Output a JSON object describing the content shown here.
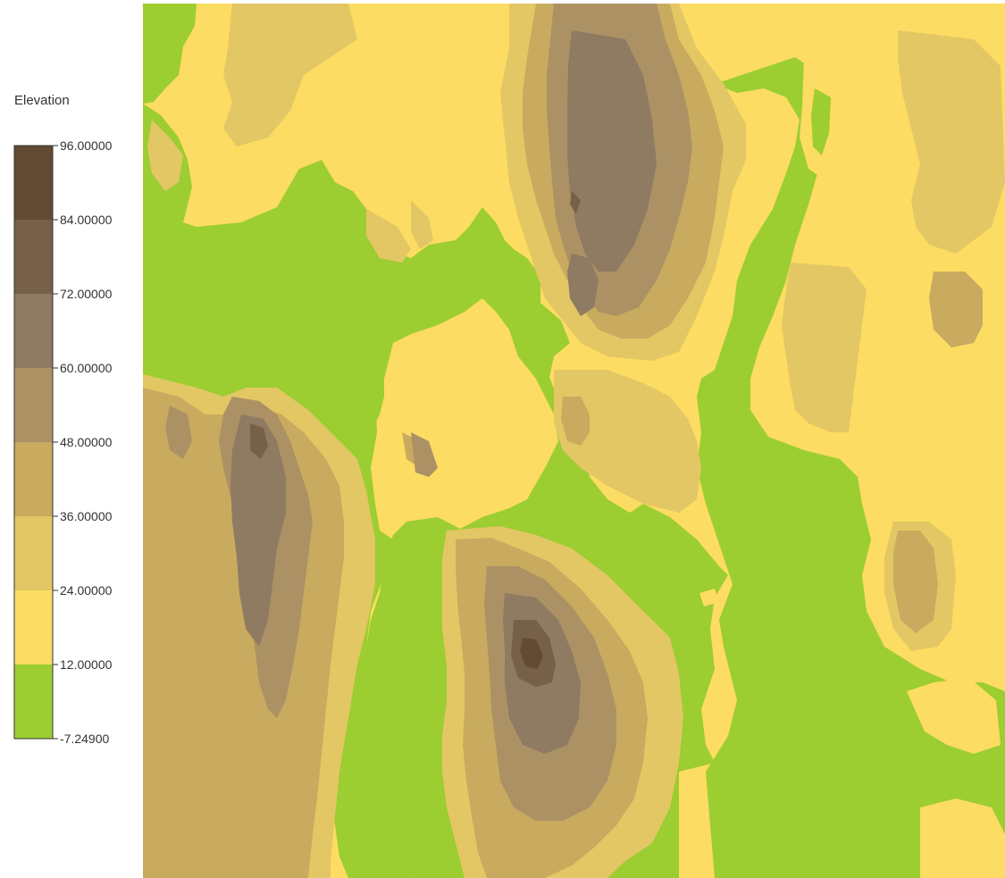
{
  "legend": {
    "title": "Elevation",
    "min": -7.249,
    "classes": [
      {
        "label": "96.00000",
        "color": "#624a33"
      },
      {
        "label": "84.00000",
        "color": "#766048"
      },
      {
        "label": "72.00000",
        "color": "#8f7a62"
      },
      {
        "label": "60.00000",
        "color": "#ac9165"
      },
      {
        "label": "48.00000",
        "color": "#c8ab5e"
      },
      {
        "label": "36.00000",
        "color": "#e3c765"
      },
      {
        "label": "24.00000",
        "color": "#fcdc62"
      },
      {
        "label": "12.00000",
        "color": "#9ccd31"
      }
    ],
    "min_label": "-7.24900"
  },
  "map": {
    "layer": "Elevation",
    "class_breaks": [
      -7.249,
      12,
      24,
      36,
      48,
      60,
      72,
      84,
      96
    ]
  }
}
